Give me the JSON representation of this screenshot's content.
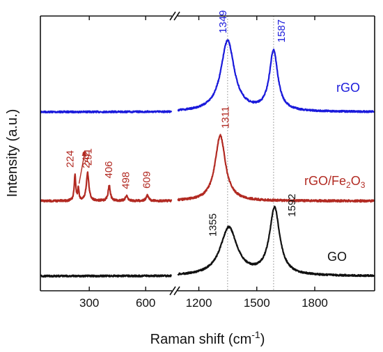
{
  "chart_data": {
    "type": "line",
    "xlabel": "Raman shift (cm",
    "xlabel_sup": "-1",
    "xlabel_close": ")",
    "ylabel": "Intensity (a.u.)",
    "x_axis_break": true,
    "grid": false,
    "xlim_left": [
      40,
      740
    ],
    "xlim_right": [
      1090,
      2110
    ],
    "x_ticks": [
      {
        "value": 300,
        "label": "300"
      },
      {
        "value": 600,
        "label": "600"
      },
      {
        "value": 1200,
        "label": "1200"
      },
      {
        "value": 1500,
        "label": "1500"
      },
      {
        "value": 1800,
        "label": "1800"
      }
    ],
    "reference_lines": [
      1349,
      1587
    ],
    "series": [
      {
        "name": "rGO",
        "color": "#1a1adb",
        "baseline": 0.0,
        "peaks": [
          {
            "x": 1349,
            "label": "1349",
            "height": 1.0
          },
          {
            "x": 1587,
            "label": "1587",
            "height": 0.85
          }
        ]
      },
      {
        "name": "rGO/Fe",
        "name_sub": "2",
        "name_mid": "O",
        "name_sub2": "3",
        "color": "#b22a22",
        "baseline": 0.0,
        "peaks": [
          {
            "x": 224,
            "label": "224",
            "height": 0.38
          },
          {
            "x": 242,
            "label": "242",
            "height": 0.18
          },
          {
            "x": 291,
            "label": "291",
            "height": 0.42
          },
          {
            "x": 406,
            "label": "406",
            "height": 0.23
          },
          {
            "x": 498,
            "label": "498",
            "height": 0.07
          },
          {
            "x": 609,
            "label": "609",
            "height": 0.08
          },
          {
            "x": 1311,
            "label": "1311",
            "height": 0.98
          }
        ]
      },
      {
        "name": "GO",
        "color": "#111111",
        "baseline": 0.0,
        "peaks": [
          {
            "x": 1355,
            "label": "1355",
            "height": 0.72
          },
          {
            "x": 1592,
            "label": "1592",
            "height": 1.0
          }
        ]
      }
    ]
  }
}
